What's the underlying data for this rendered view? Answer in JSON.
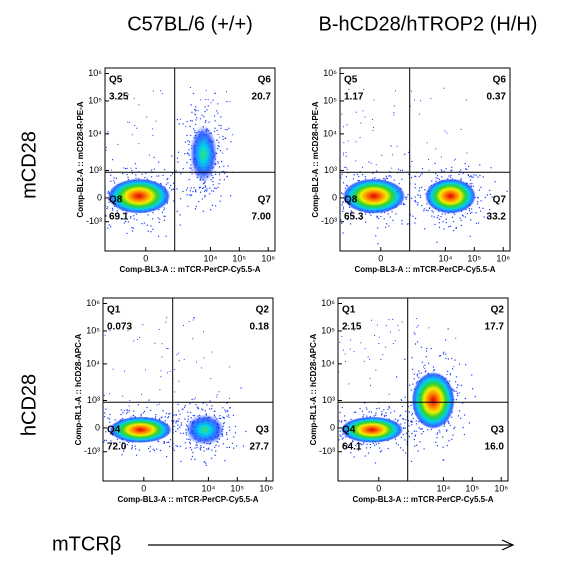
{
  "columns": [
    "C57BL/6 (+/+)",
    "B-hCD28/hTROP2 (H/H)"
  ],
  "rows": [
    "mCD28",
    "hCD28"
  ],
  "x_axis_label": "mTCRβ",
  "y_ticks": [
    "10⁶",
    "10⁵",
    "10⁴",
    "10³",
    "0",
    "-10³"
  ],
  "x_ticks": [
    "0",
    "10⁴",
    "10⁵",
    "10⁶"
  ],
  "panels": [
    {
      "y_label": "Comp-BL2-A :: mCD28-R-PE-A",
      "x_label": "Comp-BL3-A :: mTCR-PerCP-Cy5.5-A",
      "quadrants": [
        {
          "name": "Q5",
          "value": "3.25"
        },
        {
          "name": "Q6",
          "value": "20.7"
        },
        {
          "name": "Q8",
          "value": "69.1"
        },
        {
          "name": "Q7",
          "value": "7.00"
        }
      ]
    },
    {
      "y_label": "Comp-BL2-A :: mCD28-R-PE-A",
      "x_label": "Comp-BL3-A :: mTCR-PerCP-Cy5.5-A",
      "quadrants": [
        {
          "name": "Q5",
          "value": "1.17"
        },
        {
          "name": "Q6",
          "value": "0.37"
        },
        {
          "name": "Q8",
          "value": "65.3"
        },
        {
          "name": "Q7",
          "value": "33.2"
        }
      ]
    },
    {
      "y_label": "Comp-RL1-A :: hCD28-APC-A",
      "x_label": "Comp-BL3-A :: mTCR-PerCP-Cy5.5-A",
      "quadrants": [
        {
          "name": "Q1",
          "value": "0.073"
        },
        {
          "name": "Q2",
          "value": "0.18"
        },
        {
          "name": "Q4",
          "value": "72.0"
        },
        {
          "name": "Q3",
          "value": "27.7"
        }
      ]
    },
    {
      "y_label": "Comp-RL1-A :: hCD28-APC-A",
      "x_label": "Comp-BL3-A :: mTCR-PerCP-Cy5.5-A",
      "quadrants": [
        {
          "name": "Q1",
          "value": "2.15"
        },
        {
          "name": "Q2",
          "value": "17.7"
        },
        {
          "name": "Q4",
          "value": "64.1"
        },
        {
          "name": "Q3",
          "value": "16.0"
        }
      ]
    }
  ]
}
